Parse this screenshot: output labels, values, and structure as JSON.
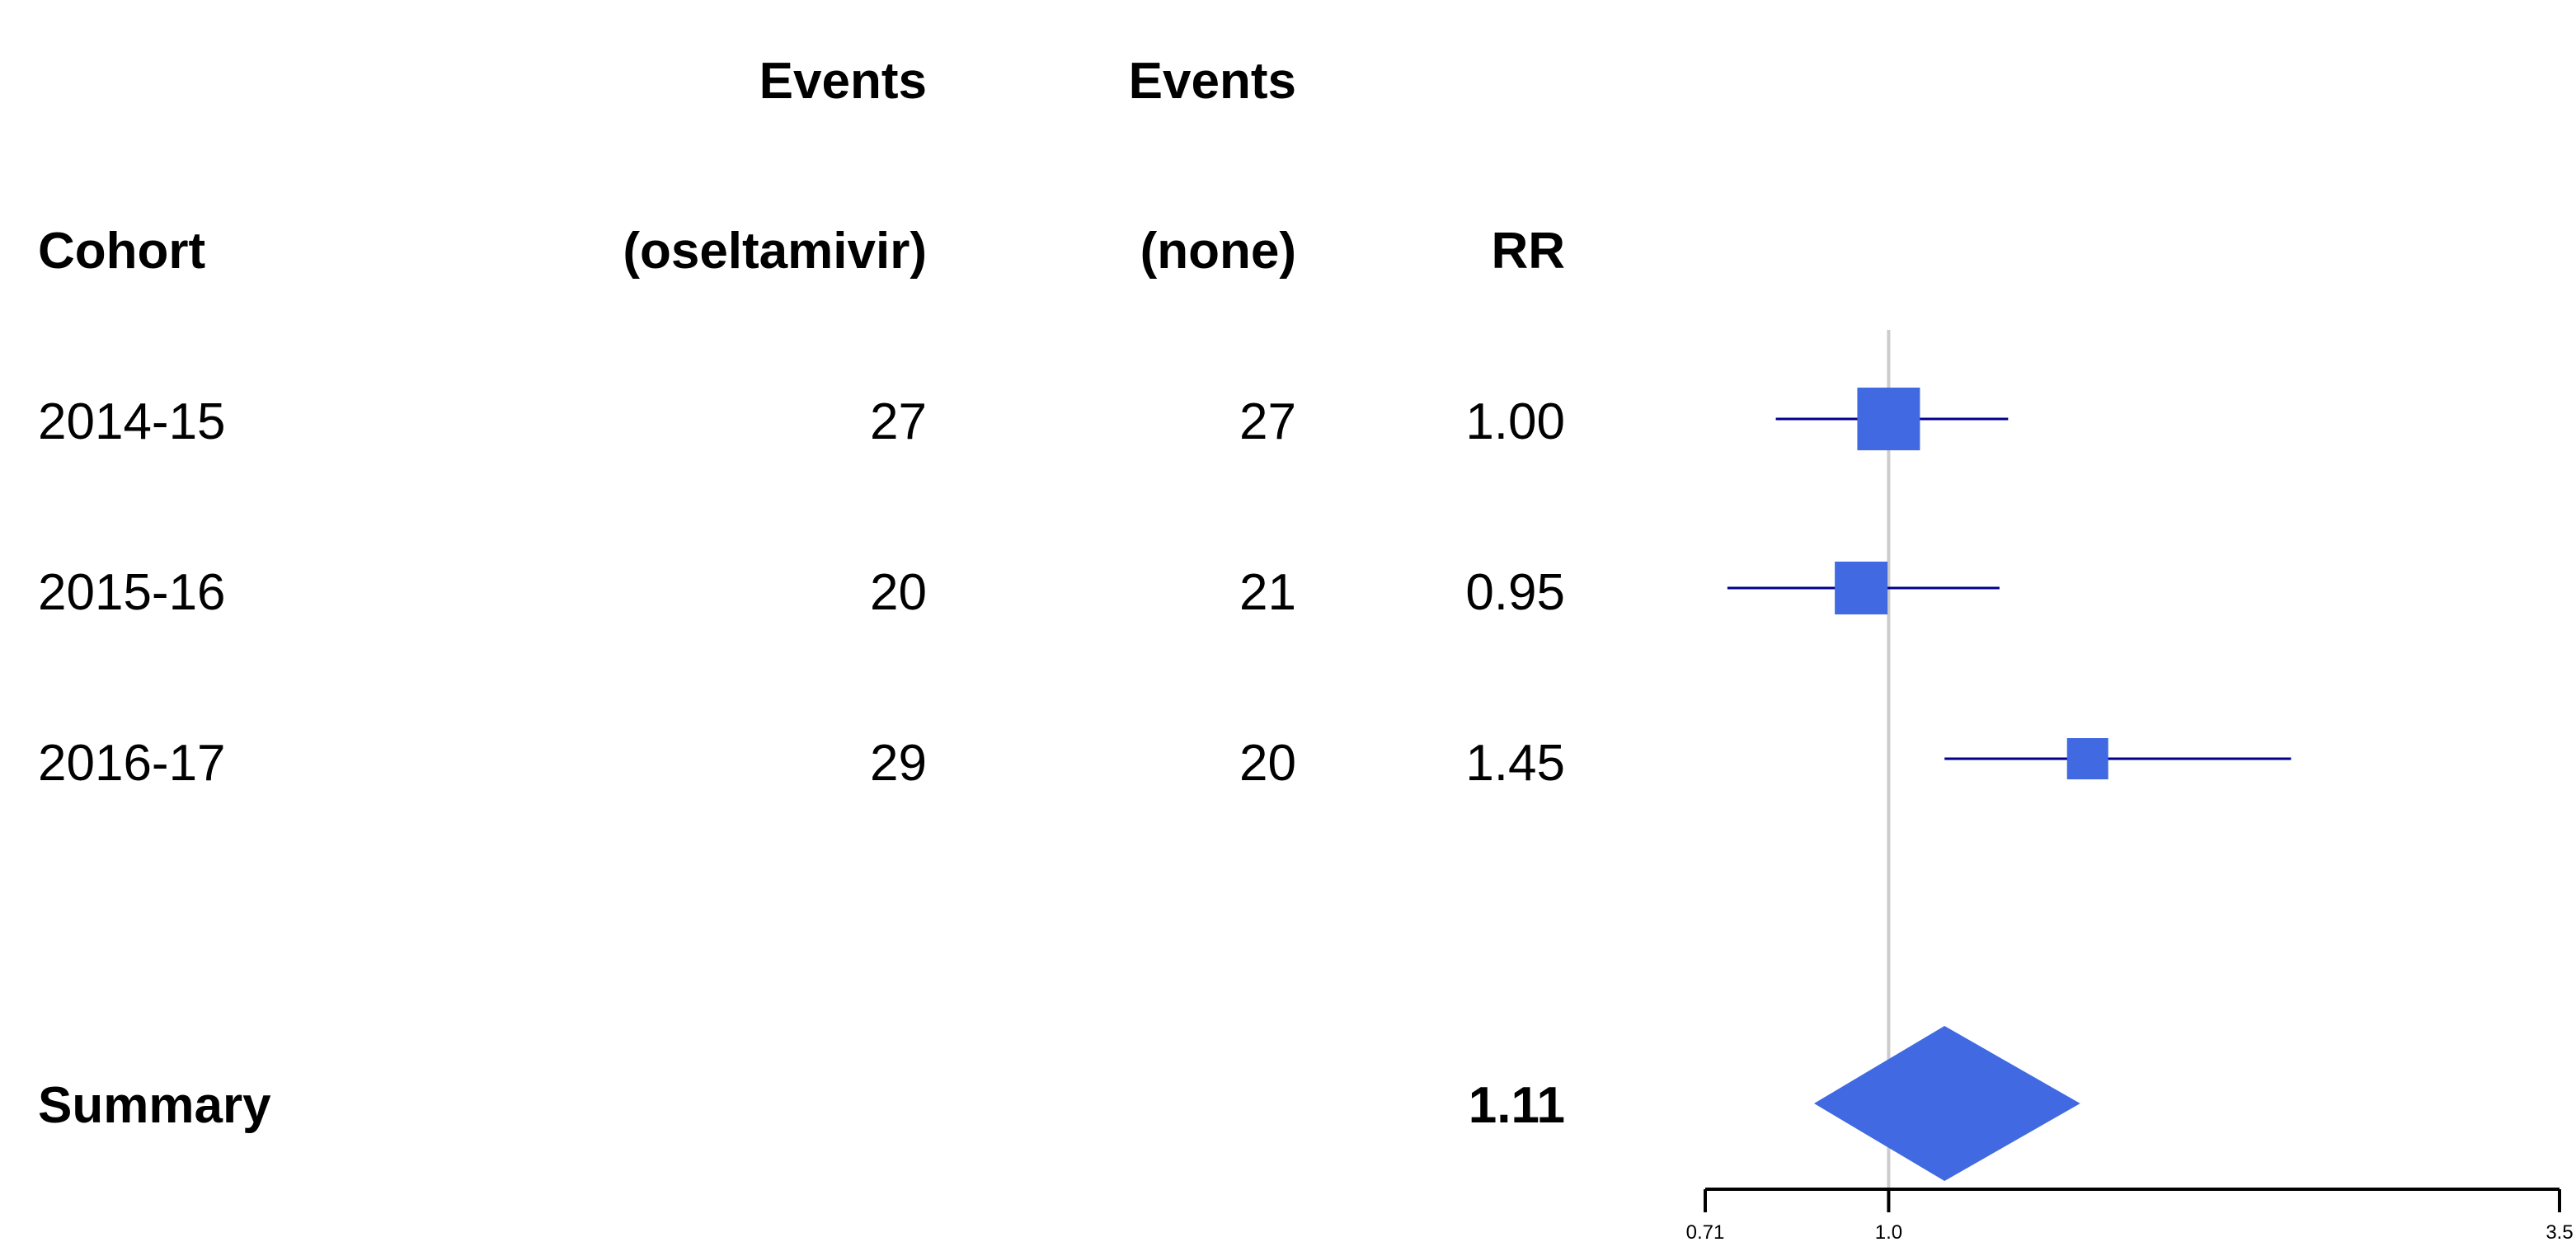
{
  "table": {
    "header_row1": {
      "oselt": "Events",
      "none": "Events"
    },
    "header_row2": {
      "cohort": "Cohort",
      "oselt": "(oseltamivir)",
      "none": "(none)",
      "rr": "RR"
    },
    "rows": [
      {
        "cohort": "2014-15",
        "oselt": "27",
        "none": "27",
        "rr": "1.00"
      },
      {
        "cohort": "2015-16",
        "oselt": "20",
        "none": "21",
        "rr": "0.95"
      },
      {
        "cohort": "2016-17",
        "oselt": "29",
        "none": "20",
        "rr": "1.45"
      }
    ],
    "summary": {
      "label": "Summary",
      "rr": "1.11"
    }
  },
  "chart_data": {
    "type": "forest",
    "scale": "log",
    "xlim": [
      0.71,
      3.5
    ],
    "reference_line": 1.0,
    "xticks": [
      0.71,
      1.0,
      3.5
    ],
    "xtick_labels": [
      "0.71",
      "1.0",
      "3.5"
    ],
    "studies": [
      {
        "label": "2014-15",
        "rr": 1.0,
        "ci": [
          0.81,
          1.25
        ]
      },
      {
        "label": "2015-16",
        "rr": 0.95,
        "ci": [
          0.74,
          1.23
        ]
      },
      {
        "label": "2016-17",
        "rr": 1.45,
        "ci": [
          1.11,
          2.12
        ]
      }
    ],
    "summary": {
      "rr": 1.11,
      "ci": [
        0.87,
        1.43
      ]
    },
    "colors": {
      "box": "#4169e1",
      "ci_line": "#00008b",
      "ref_line": "#cccccc",
      "axis": "#000000"
    }
  }
}
